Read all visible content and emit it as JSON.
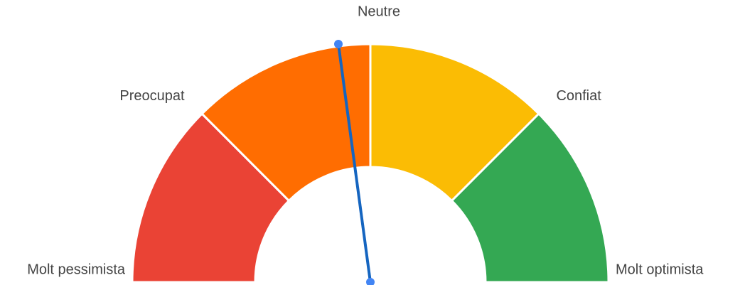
{
  "chart_data": {
    "type": "gauge",
    "ylim": [
      0,
      4
    ],
    "yticks": [
      {
        "value": 0,
        "label": "Molt pessimista"
      },
      {
        "value": 1,
        "label": "Preocupat"
      },
      {
        "value": 2,
        "label": "Neutre"
      },
      {
        "value": 3,
        "label": "Confiat"
      },
      {
        "value": 4,
        "label": "Molt optimista"
      }
    ],
    "colors": [
      "#ea4335",
      "#ff6d01",
      "#fbbc04",
      "#34a853"
    ],
    "value": 1.83,
    "needle_color": "#1565c0"
  }
}
